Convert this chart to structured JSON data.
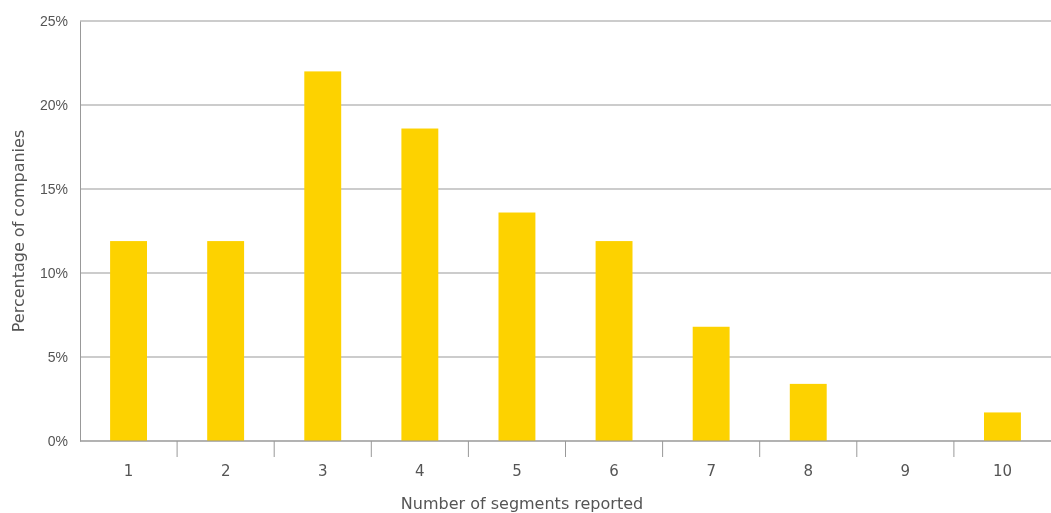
{
  "chart_data": {
    "type": "bar",
    "xlabel": "Number of segments reported",
    "ylabel": "Percentage of companies",
    "categories": [
      "1",
      "2",
      "3",
      "4",
      "5",
      "6",
      "7",
      "8",
      "9",
      "10"
    ],
    "values": [
      11.9,
      11.9,
      22,
      18.6,
      13.6,
      11.9,
      6.8,
      3.4,
      0,
      1.7
    ],
    "color": "#fdd200",
    "ylim": [
      0,
      25
    ],
    "yticks": [
      {
        "value": 0,
        "label": "0%"
      },
      {
        "value": 5,
        "label": "5%"
      },
      {
        "value": 10,
        "label": "10%"
      },
      {
        "value": 15,
        "label": "15%"
      },
      {
        "value": 20,
        "label": "20%"
      },
      {
        "value": 25,
        "label": "25%"
      }
    ],
    "grid": "y"
  }
}
